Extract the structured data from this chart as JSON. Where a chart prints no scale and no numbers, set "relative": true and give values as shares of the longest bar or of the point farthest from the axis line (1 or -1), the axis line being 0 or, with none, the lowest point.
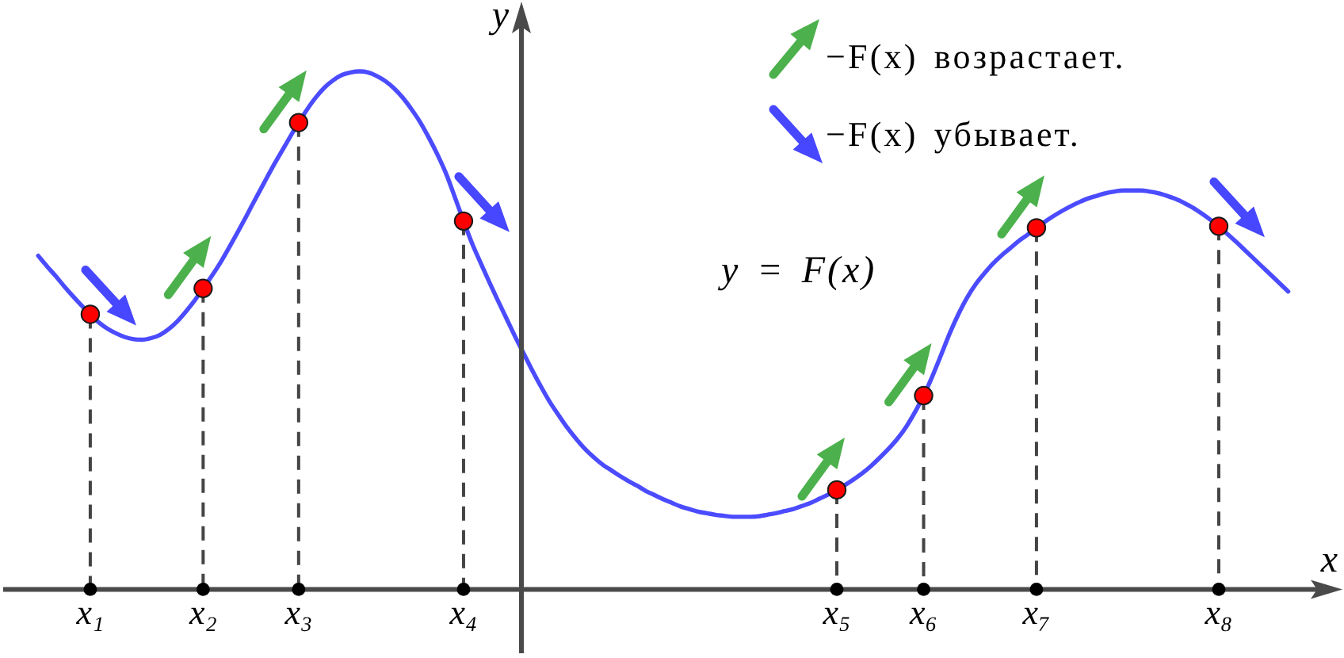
{
  "chart_data": {
    "type": "line",
    "relative": true,
    "xlabel": "x",
    "ylabel": "y",
    "categories": [
      null,
      null,
      null,
      null,
      null,
      null,
      "x₁",
      null,
      null,
      null,
      null,
      null,
      null,
      null,
      null,
      null,
      null,
      null,
      null,
      "x₂",
      null,
      null,
      null,
      null,
      null,
      null,
      null,
      null,
      null,
      null,
      "x₃",
      null,
      null,
      null,
      null,
      null,
      null,
      null,
      null,
      null,
      null,
      null,
      null,
      null,
      null,
      null,
      null,
      null,
      null,
      "x₄",
      null,
      null,
      null,
      null,
      null,
      null,
      null,
      null,
      null,
      null,
      null,
      null,
      null,
      null,
      null,
      null,
      null,
      null,
      null,
      null,
      null,
      null,
      null,
      null,
      null,
      null,
      null,
      null,
      null,
      null,
      null,
      null,
      null,
      null,
      null,
      null,
      null,
      null,
      null,
      null,
      null,
      null,
      "x₅",
      null,
      null,
      null,
      null,
      null,
      null,
      null,
      null,
      null,
      "x₆",
      null,
      null,
      null,
      null,
      null,
      null,
      null,
      null,
      null,
      null,
      null,
      null,
      "x₇",
      null,
      null,
      null,
      null,
      null,
      null,
      null,
      null,
      null,
      null,
      null,
      null,
      null,
      null,
      null,
      null,
      null,
      null,
      null,
      null,
      "x₈",
      null,
      null,
      null,
      null,
      null,
      null,
      null,
      null
    ],
    "series": [
      {
        "name": "y = F(x)",
        "color": "#4b4bff",
        "values": [
          0.644,
          0.624,
          0.605,
          0.585,
          0.566,
          0.548,
          0.531,
          0.515,
          0.503,
          0.494,
          0.487,
          0.483,
          0.482,
          0.485,
          0.491,
          0.502,
          0.517,
          0.536,
          0.557,
          0.581,
          0.605,
          0.631,
          0.66,
          0.69,
          0.721,
          0.753,
          0.784,
          0.815,
          0.844,
          0.873,
          0.901,
          0.927,
          0.95,
          0.969,
          0.983,
          0.993,
          0.998,
          1,
          0.998,
          0.991,
          0.981,
          0.967,
          0.949,
          0.927,
          0.902,
          0.872,
          0.839,
          0.802,
          0.757,
          0.711,
          0.667,
          0.629,
          0.592,
          0.556,
          0.521,
          0.486,
          0.453,
          0.42,
          0.389,
          0.36,
          0.335,
          0.311,
          0.29,
          0.271,
          0.255,
          0.241,
          0.23,
          0.219,
          0.209,
          0.2,
          0.19,
          0.182,
          0.174,
          0.167,
          0.16,
          0.155,
          0.15,
          0.147,
          0.144,
          0.142,
          0.14,
          0.14,
          0.14,
          0.141,
          0.144,
          0.147,
          0.151,
          0.155,
          0.161,
          0.167,
          0.175,
          0.183,
          0.192,
          0.202,
          0.213,
          0.225,
          0.239,
          0.255,
          0.272,
          0.291,
          0.314,
          0.342,
          0.374,
          0.411,
          0.452,
          0.494,
          0.531,
          0.563,
          0.589,
          0.61,
          0.629,
          0.645,
          0.659,
          0.673,
          0.685,
          0.698,
          0.71,
          0.721,
          0.731,
          0.74,
          0.748,
          0.755,
          0.76,
          0.765,
          0.768,
          0.77,
          0.77,
          0.77,
          0.768,
          0.765,
          0.76,
          0.754,
          0.746,
          0.737,
          0.726,
          0.714,
          0.701,
          0.686,
          0.671,
          0.655,
          0.639,
          0.623,
          0.607,
          0.591,
          0.575
        ]
      },
      {
        "type": "lollipop",
        "color": "#ff0000",
        "marker": "circle",
        "line_style": "dashed",
        "values": [
          null,
          null,
          null,
          null,
          null,
          null,
          0.531,
          null,
          null,
          null,
          null,
          null,
          null,
          null,
          null,
          null,
          null,
          null,
          null,
          0.581,
          null,
          null,
          null,
          null,
          null,
          null,
          null,
          null,
          null,
          null,
          0.901,
          null,
          null,
          null,
          null,
          null,
          null,
          null,
          null,
          null,
          null,
          null,
          null,
          null,
          null,
          null,
          null,
          null,
          null,
          0.711,
          null,
          null,
          null,
          null,
          null,
          null,
          null,
          null,
          null,
          null,
          null,
          null,
          null,
          null,
          null,
          null,
          null,
          null,
          null,
          null,
          null,
          null,
          null,
          null,
          null,
          null,
          null,
          null,
          null,
          null,
          null,
          null,
          null,
          null,
          null,
          null,
          null,
          null,
          null,
          null,
          null,
          null,
          0.192,
          null,
          null,
          null,
          null,
          null,
          null,
          null,
          null,
          null,
          0.374,
          null,
          null,
          null,
          null,
          null,
          null,
          null,
          null,
          null,
          null,
          null,
          null,
          0.698,
          null,
          null,
          null,
          null,
          null,
          null,
          null,
          null,
          null,
          null,
          null,
          null,
          null,
          null,
          null,
          null,
          null,
          null,
          null,
          null,
          0.701,
          null,
          null,
          null,
          null,
          null,
          null,
          null,
          null
        ]
      },
      {
        "type": "scatter",
        "color": "#000000",
        "marker": "circle",
        "values": [
          null,
          null,
          null,
          null,
          null,
          null,
          0,
          null,
          null,
          null,
          null,
          null,
          null,
          null,
          null,
          null,
          null,
          null,
          null,
          0,
          null,
          null,
          null,
          null,
          null,
          null,
          null,
          null,
          null,
          null,
          0,
          null,
          null,
          null,
          null,
          null,
          null,
          null,
          null,
          null,
          null,
          null,
          null,
          null,
          null,
          null,
          null,
          null,
          null,
          0,
          null,
          null,
          null,
          null,
          null,
          null,
          null,
          null,
          null,
          null,
          null,
          null,
          null,
          null,
          null,
          null,
          null,
          null,
          null,
          null,
          null,
          null,
          null,
          null,
          null,
          null,
          null,
          null,
          null,
          null,
          null,
          null,
          null,
          null,
          null,
          null,
          null,
          null,
          null,
          null,
          null,
          null,
          0,
          null,
          null,
          null,
          null,
          null,
          null,
          null,
          null,
          null,
          0,
          null,
          null,
          null,
          null,
          null,
          null,
          null,
          null,
          null,
          null,
          null,
          null,
          0,
          null,
          null,
          null,
          null,
          null,
          null,
          null,
          null,
          null,
          null,
          null,
          null,
          null,
          null,
          null,
          null,
          null,
          null,
          null,
          null,
          0,
          null,
          null,
          null,
          null,
          null,
          null,
          null,
          null
        ]
      }
    ],
    "annotations": [
      "−F(x) возрастает.",
      "−F(x) убывает."
    ]
  }
}
